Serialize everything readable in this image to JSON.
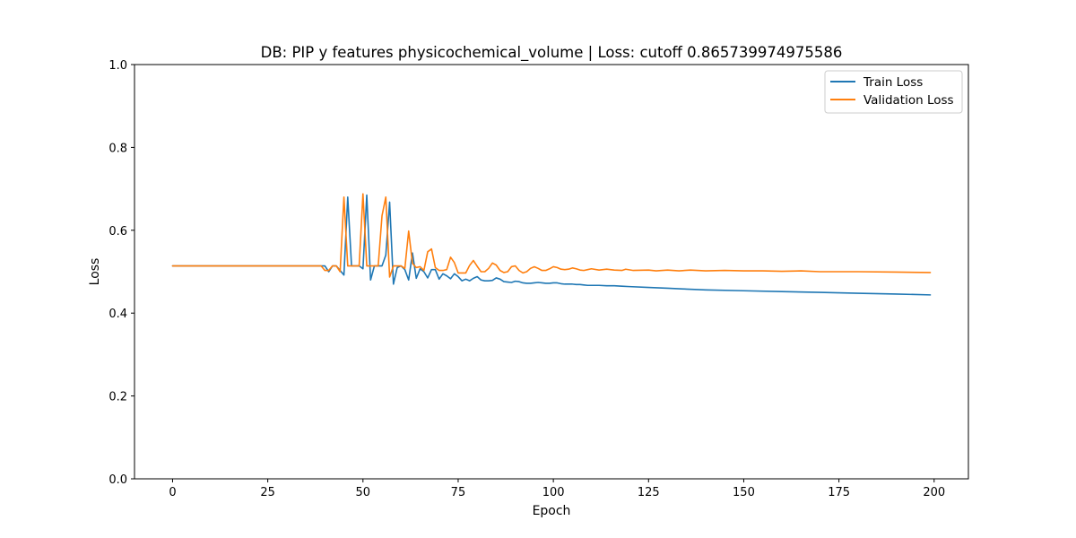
{
  "chart_data": {
    "type": "line",
    "title": "DB: PIP y features physicochemical_volume | Loss: cutoff 0.865739974975586",
    "xlabel": "Epoch",
    "ylabel": "Loss",
    "xlim": [
      -10,
      209
    ],
    "ylim": [
      0,
      1
    ],
    "xticks": [
      0,
      25,
      50,
      75,
      100,
      125,
      150,
      175,
      200
    ],
    "yticks": [
      0.0,
      0.2,
      0.4,
      0.6,
      0.8,
      1.0
    ],
    "xtick_labels": [
      "0",
      "25",
      "50",
      "75",
      "100",
      "125",
      "150",
      "175",
      "200"
    ],
    "ytick_labels": [
      "0.0",
      "0.2",
      "0.4",
      "0.6",
      "0.8",
      "1.0"
    ],
    "legend_position": "top-right",
    "grid": false,
    "series": [
      {
        "name": "Train Loss",
        "color": "#1f77b4",
        "points": [
          [
            0,
            0.514
          ],
          [
            39,
            0.514
          ],
          [
            40,
            0.514
          ],
          [
            41,
            0.5
          ],
          [
            42,
            0.514
          ],
          [
            43,
            0.514
          ],
          [
            44,
            0.503
          ],
          [
            45,
            0.492
          ],
          [
            46,
            0.68
          ],
          [
            47,
            0.514
          ],
          [
            48,
            0.514
          ],
          [
            49,
            0.514
          ],
          [
            50,
            0.507
          ],
          [
            51,
            0.685
          ],
          [
            52,
            0.48
          ],
          [
            53,
            0.514
          ],
          [
            54,
            0.514
          ],
          [
            55,
            0.514
          ],
          [
            56,
            0.54
          ],
          [
            57,
            0.668
          ],
          [
            58,
            0.47
          ],
          [
            59,
            0.51
          ],
          [
            60,
            0.514
          ],
          [
            61,
            0.505
          ],
          [
            62,
            0.48
          ],
          [
            63,
            0.545
          ],
          [
            64,
            0.484
          ],
          [
            65,
            0.507
          ],
          [
            66,
            0.5
          ],
          [
            67,
            0.485
          ],
          [
            68,
            0.505
          ],
          [
            69,
            0.505
          ],
          [
            70,
            0.482
          ],
          [
            71,
            0.495
          ],
          [
            72,
            0.49
          ],
          [
            73,
            0.483
          ],
          [
            74,
            0.495
          ],
          [
            75,
            0.488
          ],
          [
            76,
            0.478
          ],
          [
            77,
            0.482
          ],
          [
            78,
            0.478
          ],
          [
            79,
            0.484
          ],
          [
            80,
            0.488
          ],
          [
            81,
            0.48
          ],
          [
            82,
            0.478
          ],
          [
            83,
            0.478
          ],
          [
            84,
            0.479
          ],
          [
            85,
            0.485
          ],
          [
            86,
            0.482
          ],
          [
            87,
            0.476
          ],
          [
            88,
            0.475
          ],
          [
            89,
            0.474
          ],
          [
            90,
            0.477
          ],
          [
            91,
            0.476
          ],
          [
            92,
            0.473
          ],
          [
            93,
            0.472
          ],
          [
            94,
            0.472
          ],
          [
            95,
            0.473
          ],
          [
            96,
            0.474
          ],
          [
            97,
            0.473
          ],
          [
            98,
            0.472
          ],
          [
            99,
            0.472
          ],
          [
            100,
            0.473
          ],
          [
            101,
            0.473
          ],
          [
            102,
            0.471
          ],
          [
            103,
            0.47
          ],
          [
            104,
            0.47
          ],
          [
            105,
            0.47
          ],
          [
            106,
            0.469
          ],
          [
            107,
            0.469
          ],
          [
            108,
            0.468
          ],
          [
            109,
            0.467
          ],
          [
            110,
            0.467
          ],
          [
            112,
            0.467
          ],
          [
            114,
            0.466
          ],
          [
            116,
            0.466
          ],
          [
            118,
            0.465
          ],
          [
            120,
            0.464
          ],
          [
            125,
            0.462
          ],
          [
            130,
            0.46
          ],
          [
            135,
            0.458
          ],
          [
            140,
            0.456
          ],
          [
            150,
            0.454
          ],
          [
            160,
            0.452
          ],
          [
            170,
            0.45
          ],
          [
            180,
            0.448
          ],
          [
            190,
            0.446
          ],
          [
            199,
            0.444
          ]
        ]
      },
      {
        "name": "Validation Loss",
        "color": "#ff7f0e",
        "points": [
          [
            0,
            0.514
          ],
          [
            39,
            0.514
          ],
          [
            40,
            0.503
          ],
          [
            41,
            0.503
          ],
          [
            42,
            0.514
          ],
          [
            43,
            0.514
          ],
          [
            44,
            0.5
          ],
          [
            45,
            0.68
          ],
          [
            46,
            0.514
          ],
          [
            47,
            0.514
          ],
          [
            48,
            0.514
          ],
          [
            49,
            0.514
          ],
          [
            50,
            0.688
          ],
          [
            51,
            0.514
          ],
          [
            52,
            0.514
          ],
          [
            53,
            0.514
          ],
          [
            54,
            0.514
          ],
          [
            55,
            0.635
          ],
          [
            56,
            0.68
          ],
          [
            57,
            0.487
          ],
          [
            58,
            0.514
          ],
          [
            59,
            0.514
          ],
          [
            60,
            0.514
          ],
          [
            61,
            0.508
          ],
          [
            62,
            0.598
          ],
          [
            63,
            0.52
          ],
          [
            64,
            0.51
          ],
          [
            65,
            0.512
          ],
          [
            66,
            0.503
          ],
          [
            67,
            0.548
          ],
          [
            68,
            0.555
          ],
          [
            69,
            0.51
          ],
          [
            70,
            0.503
          ],
          [
            71,
            0.503
          ],
          [
            72,
            0.505
          ],
          [
            73,
            0.535
          ],
          [
            74,
            0.522
          ],
          [
            75,
            0.497
          ],
          [
            76,
            0.497
          ],
          [
            77,
            0.497
          ],
          [
            78,
            0.515
          ],
          [
            79,
            0.527
          ],
          [
            80,
            0.513
          ],
          [
            81,
            0.5
          ],
          [
            82,
            0.5
          ],
          [
            83,
            0.508
          ],
          [
            84,
            0.521
          ],
          [
            85,
            0.516
          ],
          [
            86,
            0.503
          ],
          [
            87,
            0.498
          ],
          [
            88,
            0.5
          ],
          [
            89,
            0.512
          ],
          [
            90,
            0.514
          ],
          [
            91,
            0.503
          ],
          [
            92,
            0.497
          ],
          [
            93,
            0.5
          ],
          [
            94,
            0.508
          ],
          [
            95,
            0.512
          ],
          [
            96,
            0.508
          ],
          [
            97,
            0.503
          ],
          [
            98,
            0.503
          ],
          [
            99,
            0.507
          ],
          [
            100,
            0.512
          ],
          [
            101,
            0.51
          ],
          [
            102,
            0.506
          ],
          [
            103,
            0.505
          ],
          [
            104,
            0.506
          ],
          [
            105,
            0.509
          ],
          [
            106,
            0.507
          ],
          [
            107,
            0.504
          ],
          [
            108,
            0.503
          ],
          [
            109,
            0.505
          ],
          [
            110,
            0.507
          ],
          [
            112,
            0.504
          ],
          [
            114,
            0.506
          ],
          [
            116,
            0.504
          ],
          [
            118,
            0.503
          ],
          [
            119,
            0.506
          ],
          [
            121,
            0.503
          ],
          [
            125,
            0.504
          ],
          [
            127,
            0.502
          ],
          [
            130,
            0.504
          ],
          [
            133,
            0.502
          ],
          [
            136,
            0.504
          ],
          [
            140,
            0.502
          ],
          [
            145,
            0.503
          ],
          [
            150,
            0.502
          ],
          [
            155,
            0.502
          ],
          [
            160,
            0.501
          ],
          [
            165,
            0.502
          ],
          [
            170,
            0.5
          ],
          [
            180,
            0.5
          ],
          [
            190,
            0.499
          ],
          [
            199,
            0.498
          ]
        ]
      }
    ]
  }
}
